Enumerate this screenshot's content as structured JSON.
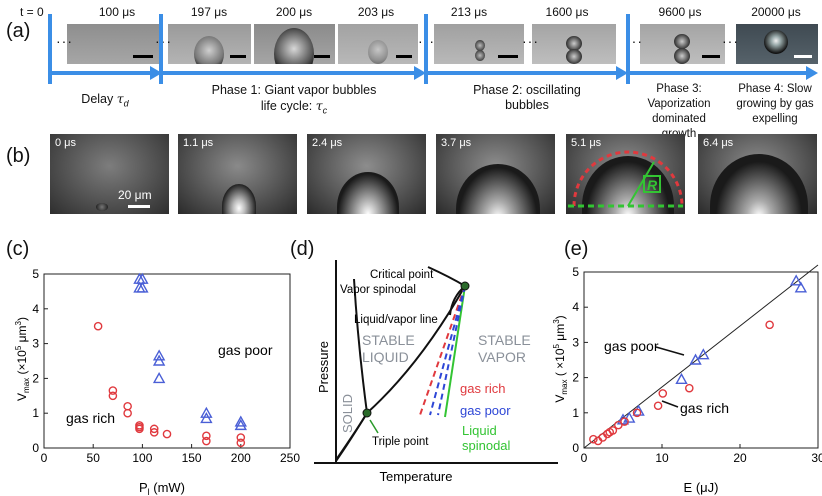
{
  "panel_labels": {
    "a": "(a)",
    "b": "(b)",
    "c": "(c)",
    "d": "(d)",
    "e": "(e)"
  },
  "panel_a": {
    "start_label": "t = 0",
    "ellipsis": "···",
    "times": [
      "100 μs",
      "197 μs",
      "200 μs",
      "203 μs",
      "213 μs",
      "1600 μs",
      "9600 μs",
      "20000 μs"
    ],
    "delay_label": "Delay",
    "delay_symbol": "τ",
    "delay_sub": "d",
    "phase1_line1": "Phase 1: Giant vapor bubbles",
    "phase1_line2": "life cycle: ",
    "phase1_symbol": "τ",
    "phase1_sub": "c",
    "phase2": "Phase 2: oscillating bubbles",
    "phase3": "Phase 3: Vaporization dominated growth",
    "phase4": "Phase 4: Slow growing by gas expelling",
    "arrow_color": "#3b8ee6"
  },
  "panel_b": {
    "times": [
      "0 μs",
      "1.1 μs",
      "2.4 μs",
      "3.7 μs",
      "5.1 μs",
      "6.4 μs"
    ],
    "scale_bar": "20 μm",
    "radius_label": "R"
  },
  "panel_c": {
    "chart_data": {
      "type": "scatter",
      "xlabel": "P",
      "xlabel_sub": "l",
      "xlabel_unit": " (mW)",
      "ylabel": "V",
      "ylabel_sub": "max",
      "ylabel_unit": " (×10",
      "ylabel_exp": "5",
      "ylabel_unit2": " μm",
      "ylabel_exp2": "3",
      "ylabel_close": ")",
      "xlim": [
        0,
        250
      ],
      "ylim": [
        0,
        5
      ],
      "xticks": [
        "0",
        "50",
        "100",
        "150",
        "200",
        "250"
      ],
      "yticks": [
        "0",
        "1",
        "2",
        "3",
        "4",
        "5"
      ],
      "annotations": [
        "gas poor",
        "gas rich"
      ],
      "series": [
        {
          "name": "gas poor",
          "marker": "triangle",
          "color": "#4a5fd6",
          "x": [
            97,
            97,
            100,
            100,
            117,
            117,
            117,
            165,
            165,
            200,
            200
          ],
          "y": [
            4.85,
            4.6,
            4.85,
            4.6,
            2.65,
            2.5,
            2.0,
            1.0,
            0.85,
            0.75,
            0.65
          ]
        },
        {
          "name": "gas rich",
          "marker": "circle",
          "color": "#e0393e",
          "x": [
            55,
            70,
            70,
            85,
            85,
            97,
            97,
            97,
            112,
            112,
            125,
            165,
            165,
            200,
            200
          ],
          "y": [
            3.5,
            1.65,
            1.5,
            1.2,
            1.0,
            0.65,
            0.6,
            0.55,
            0.55,
            0.45,
            0.4,
            0.35,
            0.2,
            0.3,
            0.15
          ]
        }
      ]
    }
  },
  "panel_d": {
    "chart_data": {
      "type": "phase-diagram",
      "xlabel": "Temperature",
      "ylabel": "Pressure",
      "regions": [
        "SOLID",
        "STABLE LIQUID",
        "STABLE VAPOR"
      ],
      "region_words": {
        "solid": "SOLID",
        "stable": "STABLE",
        "liquid": "LIQUID",
        "vapor": "VAPOR"
      },
      "labels": {
        "critical": "Critical point",
        "vapor_spinodal": "Vapor spinodal",
        "lv_line": "Liquid/vapor line",
        "gas_rich": "gas rich",
        "gas_poor": "gas poor",
        "liquid_spinodal_1": "Liquid",
        "liquid_spinodal_2": "spinodal",
        "triple": "Triple point"
      },
      "colors": {
        "gas_rich": "#e0393e",
        "gas_poor": "#2d46d6",
        "spinodal": "#33c433",
        "region": "#8a9099"
      }
    }
  },
  "panel_e": {
    "chart_data": {
      "type": "scatter",
      "xlabel": "E (μJ)",
      "ylabel": "V",
      "ylabel_sub": "max",
      "ylabel_unit": " ( ×10",
      "ylabel_exp": "5",
      "ylabel_unit2": " μm",
      "ylabel_exp2": "3",
      "ylabel_close": ")",
      "xlim": [
        0,
        30
      ],
      "ylim": [
        0,
        5
      ],
      "xticks": [
        "0",
        "10",
        "20",
        "30"
      ],
      "yticks": [
        "0",
        "1",
        "2",
        "3",
        "4",
        "5"
      ],
      "annotations": [
        "gas poor",
        "gas rich"
      ],
      "fit_line": {
        "x": [
          0,
          30
        ],
        "y": [
          0,
          5.2
        ]
      },
      "series": [
        {
          "name": "gas poor",
          "marker": "triangle",
          "color": "#4a5fd6",
          "x": [
            5,
            5.8,
            7,
            12.5,
            14.3,
            15.3,
            27.2,
            27.8
          ],
          "y": [
            0.8,
            0.85,
            1.05,
            1.95,
            2.5,
            2.65,
            4.75,
            4.55
          ]
        },
        {
          "name": "gas rich",
          "marker": "circle",
          "color": "#e0393e",
          "x": [
            1.2,
            1.8,
            2.4,
            3.0,
            3.3,
            3.7,
            4.4,
            5.2,
            6.8,
            9.5,
            10.1,
            13.5,
            23.8
          ],
          "y": [
            0.25,
            0.2,
            0.3,
            0.4,
            0.45,
            0.5,
            0.65,
            0.75,
            1.0,
            1.2,
            1.55,
            1.7,
            3.5
          ]
        }
      ]
    }
  }
}
